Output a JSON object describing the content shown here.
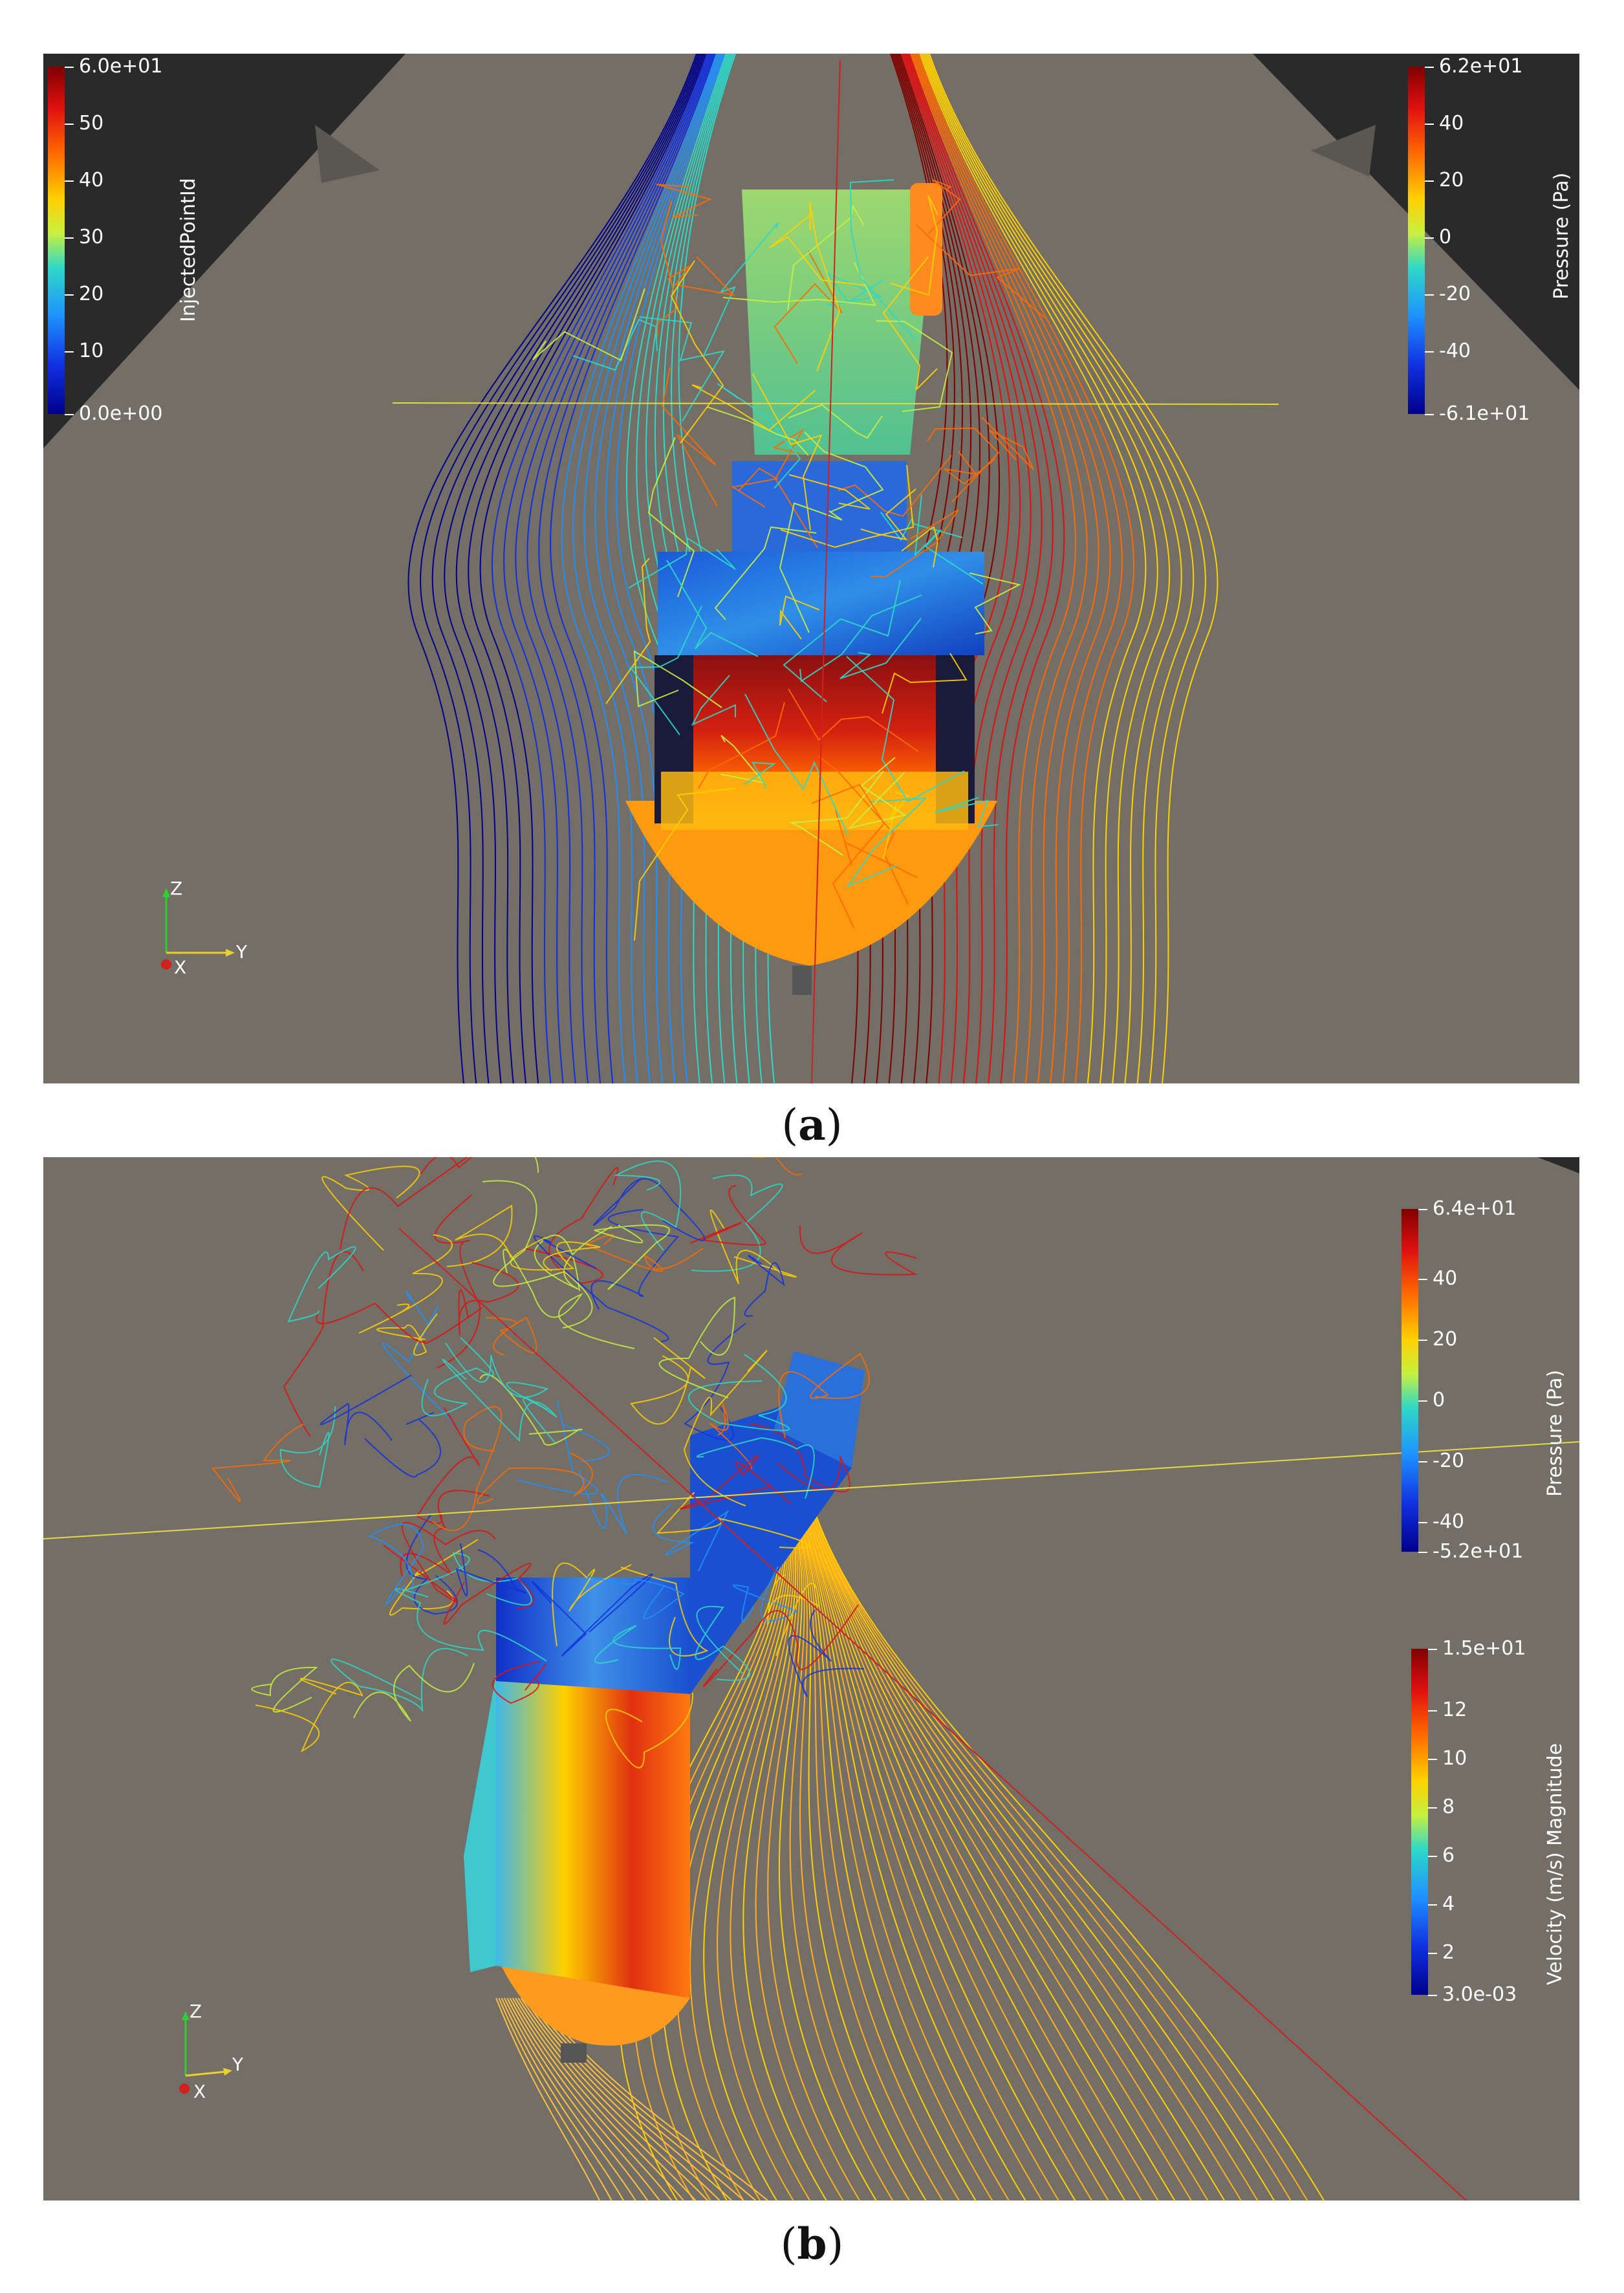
{
  "panel_a": {
    "caption_open": "(",
    "caption_letter": "a",
    "caption_close": ")",
    "left_colorbar": {
      "title": "InjectedPointId",
      "ticks": [
        "6.0e+01",
        "50",
        "40",
        "30",
        "20",
        "10",
        "0.0e+00"
      ]
    },
    "right_colorbar": {
      "title": "Pressure (Pa)",
      "ticks": [
        "6.2e+01",
        "40",
        "20",
        "0",
        "-20",
        "-40",
        "-6.1e+01"
      ]
    },
    "axes": {
      "z": "Z",
      "y": "Y",
      "x": "X"
    }
  },
  "panel_b": {
    "caption_open": "(",
    "caption_letter": "b",
    "caption_close": ")",
    "pressure_colorbar": {
      "title": "Pressure (Pa)",
      "ticks": [
        "6.4e+01",
        "40",
        "20",
        "0",
        "-20",
        "-40",
        "-5.2e+01"
      ]
    },
    "velocity_colorbar": {
      "title": "Velocity (m/s) Magnitude",
      "ticks": [
        "1.5e+01",
        "12",
        "10",
        "8",
        "6",
        "4",
        "2",
        "3.0e-03"
      ]
    },
    "axes": {
      "z": "Z",
      "y": "Y",
      "x": "X"
    }
  },
  "colors": {
    "viewport_background": "#736e66",
    "ground_dark": "#2b2b2b",
    "colormap": [
      "#00008b",
      "#1030e0",
      "#1e90ff",
      "#2ed8c8",
      "#c8f040",
      "#ffd000",
      "#ff6a00",
      "#e01010",
      "#800000"
    ]
  }
}
